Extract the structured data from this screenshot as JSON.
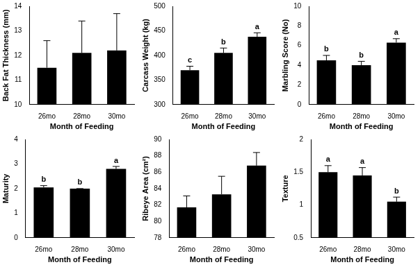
{
  "chart_data": [
    {
      "type": "bar",
      "categories": [
        "26mo",
        "28mo",
        "30mo"
      ],
      "values": [
        11.5,
        12.1,
        12.2
      ],
      "errors": [
        1.1,
        1.3,
        1.5
      ],
      "x_label": "Month of Feeding",
      "y_label": "Back Fat Thickness (mm)",
      "color": "#000000",
      "ylim": [
        10,
        14
      ],
      "yticks": [
        10,
        11,
        12,
        13,
        14
      ],
      "grid": false
    },
    {
      "type": "bar",
      "categories": [
        "26mo",
        "28mo",
        "30mo"
      ],
      "values": [
        370,
        405,
        438
      ],
      "errors": [
        8,
        10,
        8
      ],
      "annotations": [
        "c",
        "b",
        "a"
      ],
      "x_label": "Month of Feeding",
      "y_label": "Carcass Weight (kg)",
      "color": "#000000",
      "ylim": [
        300,
        500
      ],
      "yticks": [
        300,
        350,
        400,
        450,
        500
      ],
      "grid": false
    },
    {
      "type": "bar",
      "categories": [
        "26mo",
        "28mo",
        "30mo"
      ],
      "values": [
        4.5,
        4.0,
        6.3
      ],
      "errors": [
        0.5,
        0.4,
        0.4
      ],
      "annotations": [
        "b",
        "b",
        "a"
      ],
      "x_label": "Month of Feeding",
      "y_label": "Marbling Score (No)",
      "color": "#000000",
      "ylim": [
        0,
        10
      ],
      "yticks": [
        0,
        2,
        4,
        6,
        8,
        10
      ],
      "grid": false
    },
    {
      "type": "bar",
      "categories": [
        "26mo",
        "28mo",
        "30mo"
      ],
      "values": [
        2.05,
        2.0,
        2.8
      ],
      "errors": [
        0.07,
        0,
        0.1
      ],
      "annotations": [
        "b",
        "b",
        "a"
      ],
      "x_label": "Month of Feeding",
      "y_label": "Maturity",
      "color": "#000000",
      "ylim": [
        0,
        4
      ],
      "yticks": [
        0,
        1,
        2,
        3,
        4
      ],
      "grid": false
    },
    {
      "type": "bar",
      "categories": [
        "26mo",
        "28mo",
        "30mo"
      ],
      "values": [
        81.7,
        83.3,
        86.8
      ],
      "errors": [
        1.4,
        2.2,
        1.6
      ],
      "x_label": "Month of Feeding",
      "y_label": "Ribeye Area (cm²)",
      "color": "#000000",
      "ylim": [
        78,
        90
      ],
      "yticks": [
        78,
        80,
        82,
        84,
        86,
        88,
        90
      ],
      "grid": false
    },
    {
      "type": "bar",
      "categories": [
        "26mo",
        "28mo",
        "30mo"
      ],
      "values": [
        1.5,
        1.45,
        1.05
      ],
      "errors": [
        0.1,
        0.12,
        0.07
      ],
      "annotations": [
        "a",
        "a",
        "b"
      ],
      "x_label": "Month of Feeding",
      "y_label": "Texture",
      "color": "#000000",
      "ylim": [
        0.5,
        2
      ],
      "yticks": [
        0.5,
        1,
        1.5,
        2
      ],
      "grid": false
    }
  ]
}
